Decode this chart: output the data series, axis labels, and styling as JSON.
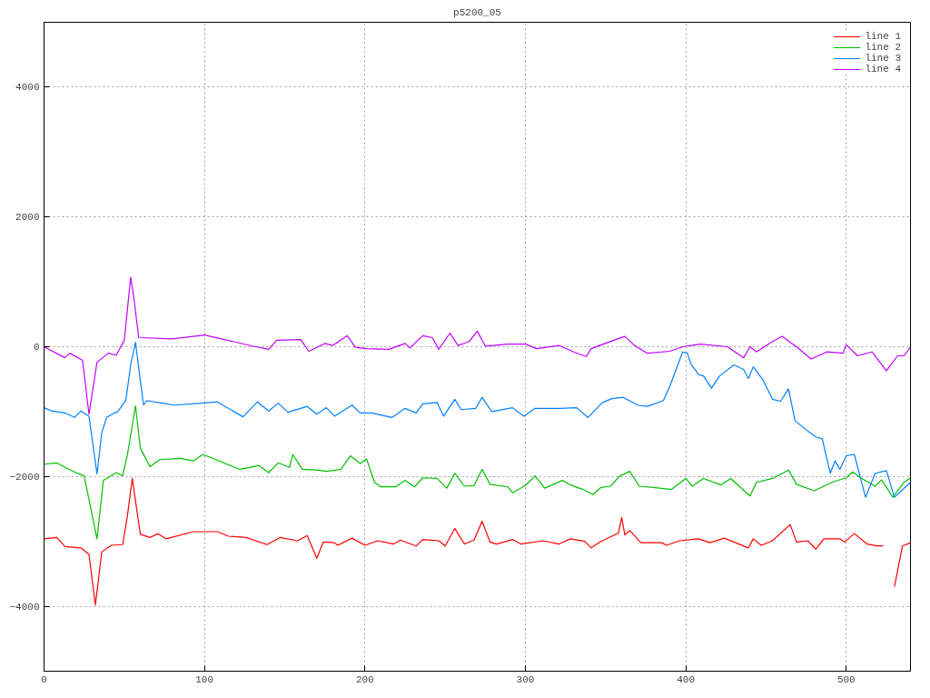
{
  "chart_data": {
    "type": "line",
    "title": "p5200_05",
    "xlim": [
      0,
      540
    ],
    "ylim": [
      -5000,
      5000
    ],
    "xticks": [
      0,
      100,
      200,
      300,
      400,
      500
    ],
    "yticks": [
      -4000,
      -2000,
      0,
      2000,
      4000
    ],
    "grid": true,
    "legend": "top right",
    "line_style": "solid",
    "marker": "none",
    "series": [
      {
        "name": "line 1",
        "color": "#ff0000",
        "x": [
          0,
          8,
          13,
          23,
          28,
          32,
          36,
          42,
          49,
          52,
          55,
          60,
          66,
          71,
          76,
          93,
          108,
          115,
          126,
          139,
          147,
          158,
          164,
          170,
          174,
          181,
          183,
          192,
          200,
          208,
          218,
          222,
          232,
          236,
          246,
          250,
          256,
          262,
          268,
          273,
          278,
          282,
          292,
          297,
          311,
          321,
          328,
          337,
          341,
          347,
          358,
          360,
          362,
          365,
          372,
          385,
          388,
          396,
          408,
          415,
          424,
          439,
          442,
          447,
          454,
          465,
          469,
          476,
          481,
          486,
          496,
          499,
          505,
          513,
          519,
          523,
          525,
          528,
          530,
          535,
          540
        ],
        "values": [
          -2960,
          -2940,
          -3080,
          -3100,
          -3200,
          -3980,
          -3160,
          -3060,
          -3050,
          -2600,
          -2030,
          -2890,
          -2940,
          -2880,
          -2960,
          -2850,
          -2850,
          -2920,
          -2940,
          -3050,
          -2940,
          -2990,
          -2910,
          -3260,
          -3010,
          -3020,
          -3060,
          -2950,
          -3060,
          -2990,
          -3040,
          -2980,
          -3070,
          -2970,
          -2990,
          -3070,
          -2800,
          -3040,
          -2980,
          -2690,
          -3010,
          -3040,
          -2970,
          -3040,
          -2990,
          -3040,
          -2960,
          -3000,
          -3100,
          -3000,
          -2870,
          -2630,
          -2900,
          -2830,
          -3020,
          -3020,
          -3060,
          -2990,
          -2960,
          -3020,
          -2950,
          -3100,
          -2960,
          -3060,
          -2990,
          -2740,
          -3010,
          -2990,
          -3120,
          -2960,
          -2960,
          -3010,
          -2880,
          -3040,
          -3070,
          -3070,
          null,
          null,
          -3700,
          -3070,
          -3020
        ]
      },
      {
        "name": "line 2",
        "color": "#00c000",
        "x": [
          0,
          8,
          13,
          19,
          25,
          33,
          37,
          45,
          49,
          52,
          57,
          60,
          66,
          72,
          85,
          93,
          99,
          114,
          122,
          134,
          140,
          146,
          153,
          155,
          161,
          170,
          176,
          185,
          191,
          197,
          201,
          206,
          210,
          219,
          225,
          231,
          236,
          245,
          251,
          256,
          262,
          268,
          273,
          278,
          289,
          292,
          300,
          306,
          312,
          323,
          328,
          336,
          342,
          347,
          353,
          359,
          365,
          371,
          380,
          391,
          400,
          404,
          411,
          422,
          428,
          440,
          444,
          454,
          464,
          469,
          480,
          492,
          500,
          504,
          509,
          518,
          522,
          529,
          536,
          540
        ],
        "values": [
          -1810,
          -1790,
          -1860,
          -1930,
          -1990,
          -2960,
          -2060,
          -1940,
          -1990,
          -1660,
          -910,
          -1560,
          -1850,
          -1740,
          -1720,
          -1760,
          -1660,
          -1810,
          -1890,
          -1830,
          -1940,
          -1790,
          -1860,
          -1660,
          -1890,
          -1900,
          -1920,
          -1890,
          -1680,
          -1800,
          -1730,
          -2090,
          -2160,
          -2160,
          -2060,
          -2160,
          -2020,
          -2030,
          -2180,
          -1950,
          -2150,
          -2140,
          -1890,
          -2120,
          -2160,
          -2250,
          -2140,
          -1990,
          -2180,
          -2060,
          -2130,
          -2200,
          -2280,
          -2170,
          -2150,
          -1990,
          -1920,
          -2150,
          -2170,
          -2200,
          -2030,
          -2150,
          -2030,
          -2130,
          -2030,
          -2300,
          -2090,
          -2030,
          -1900,
          -2120,
          -2220,
          -2080,
          -2020,
          -1930,
          -2020,
          -2150,
          -2050,
          -2320,
          -2090,
          -2020
        ]
      },
      {
        "name": "line 3",
        "color": "#0080ff",
        "x": [
          0,
          5,
          13,
          19,
          23,
          28,
          33,
          36,
          39,
          44,
          46,
          51,
          54,
          57,
          60,
          62,
          64,
          74,
          81,
          98,
          108,
          124,
          133,
          140,
          146,
          152,
          164,
          170,
          176,
          181,
          192,
          197,
          204,
          217,
          225,
          232,
          236,
          245,
          249,
          256,
          260,
          269,
          273,
          279,
          292,
          299,
          306,
          321,
          332,
          339,
          348,
          354,
          361,
          370,
          376,
          386,
          390,
          398,
          401,
          403,
          408,
          411,
          416,
          421,
          430,
          436,
          439,
          442,
          448,
          454,
          459,
          464,
          468,
          475,
          481,
          485,
          490,
          493,
          496,
          500,
          505,
          512,
          518,
          525,
          530,
          540
        ],
        "values": [
          -940,
          -990,
          -1020,
          -1090,
          -990,
          -1070,
          -1960,
          -1320,
          -1090,
          -1020,
          -1000,
          -820,
          -280,
          70,
          -520,
          -900,
          -830,
          -870,
          -900,
          -870,
          -850,
          -1080,
          -850,
          -990,
          -870,
          -1010,
          -920,
          -1040,
          -940,
          -1070,
          -900,
          -1020,
          -1020,
          -1090,
          -950,
          -1020,
          -880,
          -860,
          -1070,
          -810,
          -970,
          -950,
          -780,
          -1000,
          -940,
          -1070,
          -950,
          -950,
          -940,
          -1090,
          -860,
          -800,
          -780,
          -900,
          -920,
          -830,
          -610,
          -80,
          -100,
          -260,
          -430,
          -450,
          -640,
          -450,
          -280,
          -350,
          -490,
          -310,
          -510,
          -810,
          -840,
          -650,
          -1140,
          -1280,
          -1390,
          -1420,
          -1950,
          -1760,
          -1890,
          -1680,
          -1660,
          -2320,
          -1950,
          -1910,
          -2320,
          -2090
        ]
      },
      {
        "name": "line 4",
        "color": "#c000ff",
        "x": [
          0,
          13,
          16,
          24,
          28,
          33,
          40,
          45,
          50,
          54,
          56,
          59,
          80,
          100,
          130,
          140,
          145,
          160,
          165,
          175,
          180,
          189,
          194,
          201,
          215,
          225,
          228,
          236,
          242,
          246,
          253,
          258,
          265,
          270,
          275,
          289,
          300,
          307,
          321,
          330,
          338,
          341,
          355,
          362,
          368,
          376,
          390,
          398,
          409,
          426,
          436,
          440,
          444,
          454,
          460,
          470,
          478,
          488,
          498,
          500,
          507,
          516,
          525,
          532,
          536,
          540
        ],
        "values": [
          0,
          -170,
          -100,
          -210,
          -1040,
          -240,
          -100,
          -130,
          100,
          1070,
          750,
          140,
          120,
          180,
          10,
          -40,
          100,
          110,
          -70,
          50,
          20,
          170,
          -10,
          -30,
          -40,
          50,
          -20,
          170,
          140,
          -40,
          210,
          20,
          80,
          240,
          10,
          40,
          40,
          -30,
          20,
          -80,
          -150,
          -30,
          100,
          160,
          20,
          -100,
          -70,
          0,
          40,
          0,
          -170,
          0,
          -80,
          80,
          160,
          -20,
          -190,
          -80,
          -100,
          30,
          -140,
          -80,
          -370,
          -140,
          -140,
          0
        ]
      }
    ]
  }
}
